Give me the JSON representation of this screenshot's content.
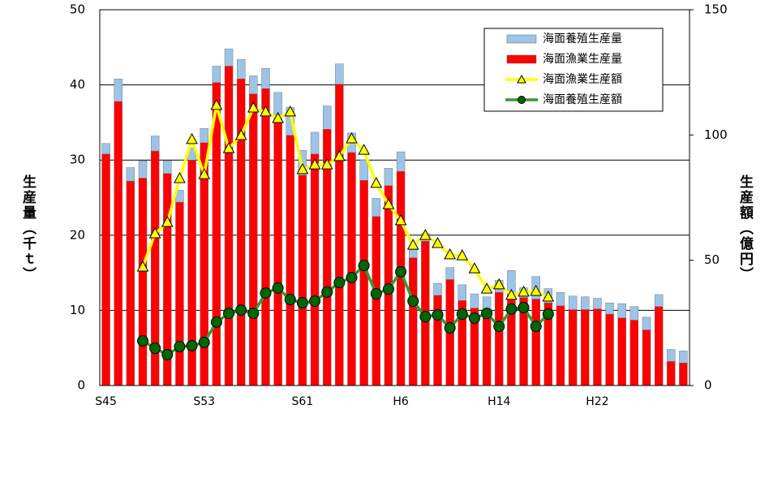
{
  "chart_data": {
    "type": "bar",
    "y_label": "生産量（千ｔ）",
    "y2_label": "生産額（億円）",
    "categories": [
      "S45",
      null,
      null,
      null,
      null,
      null,
      null,
      null,
      "S53",
      null,
      null,
      null,
      null,
      null,
      null,
      null,
      "S61",
      null,
      null,
      null,
      null,
      null,
      null,
      null,
      "H6",
      null,
      null,
      null,
      null,
      null,
      null,
      null,
      "H14",
      null,
      null,
      null,
      null,
      null,
      null,
      null,
      "H22",
      null,
      null,
      null,
      null,
      null,
      null,
      null
    ],
    "series": [
      {
        "name": "海面養殖生産量",
        "type": "bar",
        "color": "#9dc3e6",
        "values": [
          1.4,
          3.0,
          1.8,
          2.3,
          2.0,
          1.7,
          1.6,
          1.6,
          1.9,
          2.2,
          2.3,
          2.6,
          2.4,
          2.7,
          3.8,
          3.7,
          3.3,
          2.9,
          3.1,
          2.7,
          2.6,
          2.7,
          2.4,
          2.3,
          2.6,
          1.2,
          1.0,
          1.6,
          1.6,
          2.1,
          1.9,
          1.8,
          1.6,
          3.1,
          1.3,
          3.0,
          1.9,
          1.8,
          1.8,
          1.7,
          1.4,
          1.5,
          1.9,
          1.8,
          1.7,
          1.6,
          1.6,
          1.6
        ]
      },
      {
        "name": "海面漁業生産量",
        "type": "bar",
        "color": "#ff0000",
        "values": [
          30.8,
          37.8,
          27.2,
          27.6,
          31.2,
          28.2,
          24.4,
          30.0,
          32.3,
          40.3,
          42.5,
          40.8,
          38.8,
          39.5,
          35.2,
          33.3,
          28.0,
          30.8,
          34.1,
          40.1,
          31.0,
          27.3,
          22.5,
          26.6,
          28.5,
          17.0,
          19.2,
          12.0,
          14.1,
          11.3,
          10.3,
          10.0,
          12.4,
          12.2,
          11.7,
          11.5,
          11.0,
          10.6,
          10.1,
          10.1,
          10.2,
          9.5,
          9.0,
          8.7,
          7.4,
          10.5,
          3.2,
          3.0
        ]
      },
      {
        "name": "海面漁業生産額",
        "type": "line",
        "axis": "y2",
        "color": "#ffff00",
        "marker": "triangle",
        "values": [
          null,
          null,
          null,
          47.3,
          60.6,
          65.1,
          82.6,
          98.2,
          84.2,
          111.8,
          94.6,
          99.8,
          110.8,
          109.2,
          106.6,
          109.2,
          86.2,
          88.1,
          88.1,
          91.4,
          98.5,
          93.9,
          80.7,
          72.2,
          65.8,
          56.0,
          59.9,
          56.7,
          52.2,
          51.8,
          46.6,
          38.5,
          40.2,
          36.0,
          37.3,
          37.6,
          35.3,
          null,
          null,
          null,
          null,
          null,
          null,
          null,
          null,
          null,
          null,
          null
        ]
      },
      {
        "name": "海面養殖生産額",
        "type": "line",
        "axis": "y2",
        "color": "#339933",
        "marker": "circle",
        "values": [
          null,
          null,
          null,
          17.8,
          14.9,
          12.3,
          15.5,
          15.9,
          17.2,
          25.3,
          28.8,
          30.1,
          28.8,
          36.9,
          38.9,
          34.3,
          33.0,
          33.7,
          37.3,
          41.1,
          43.1,
          47.9,
          36.6,
          38.5,
          45.4,
          33.7,
          27.5,
          28.2,
          23.0,
          28.5,
          26.9,
          28.8,
          23.6,
          30.5,
          31.1,
          23.6,
          28.5,
          null,
          null,
          null,
          null,
          null,
          null,
          null,
          null,
          null,
          null,
          null
        ]
      }
    ],
    "stacking": [
      "海面漁業生産量",
      "海面養殖生産量"
    ],
    "ylim": [
      0,
      50
    ],
    "yticks": [
      0,
      10,
      20,
      30,
      40,
      50
    ],
    "y2lim": [
      0,
      150
    ],
    "y2ticks": [
      0,
      50,
      100,
      150
    ],
    "grid": true,
    "legend": "upper right"
  }
}
